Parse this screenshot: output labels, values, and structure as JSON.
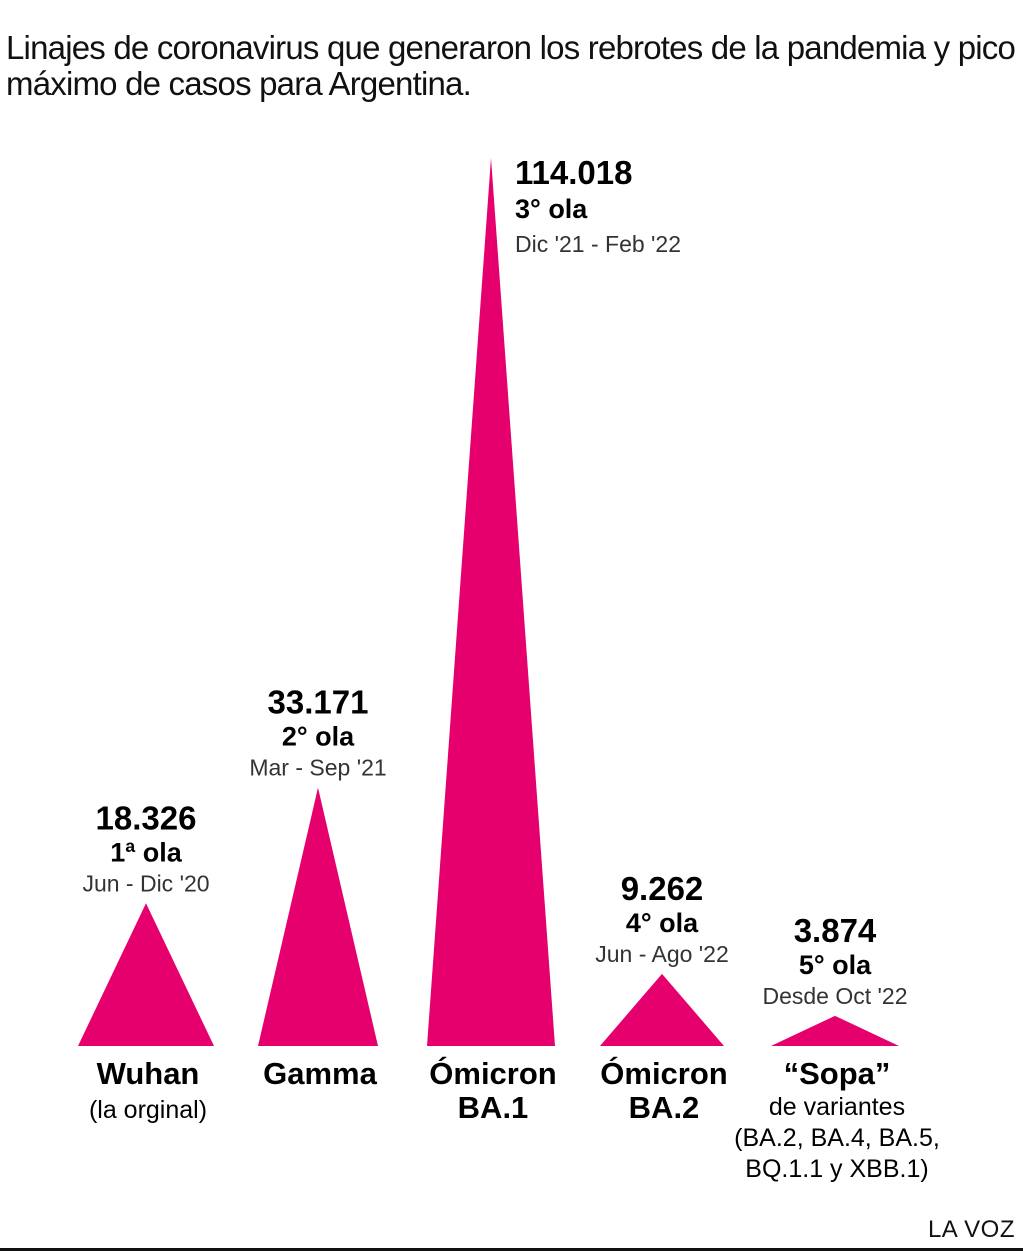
{
  "title": "Linajes de coronavirus que generaron los rebrotes de la pandemia y pico máximo de casos para Argentina.",
  "source": "LA VOZ",
  "colors": {
    "spike": "#e6006e",
    "text": "#111111",
    "period": "#333333"
  },
  "chart_data": {
    "type": "bar",
    "title": "Linajes de coronavirus que generaron los rebrotes de la pandemia y pico máximo de casos para Argentina.",
    "xlabel": "",
    "ylabel": "",
    "ylim": [
      0,
      114018
    ],
    "grid": false,
    "categories": [
      {
        "name": "Wuhan",
        "sub": [
          "(la orginal)"
        ],
        "value": 18326,
        "value_label": "18.326",
        "wave": "1ª ola",
        "period": "Jun - Dic '20"
      },
      {
        "name": "Gamma",
        "sub": [],
        "value": 33171,
        "value_label": "33.171",
        "wave": "2° ola",
        "period": "Mar - Sep '21"
      },
      {
        "name": "Ómicron",
        "sub": [
          "BA.1"
        ],
        "value": 114018,
        "value_label": "114.018",
        "wave": "3° ola",
        "period": "Dic '21 - Feb '22"
      },
      {
        "name": "Ómicron",
        "sub": [
          "BA.2"
        ],
        "value": 9262,
        "value_label": "9.262",
        "wave": "4° ola",
        "period": "Jun - Ago '22"
      },
      {
        "name": "“Sopa”",
        "sub": [
          "de variantes",
          "(BA.2, BA.4, BA.5,",
          "BQ.1.1 y XBB.1)"
        ],
        "value": 3874,
        "value_label": "3.874",
        "wave": "5° ola",
        "period": "Desde Oct '22"
      }
    ]
  }
}
